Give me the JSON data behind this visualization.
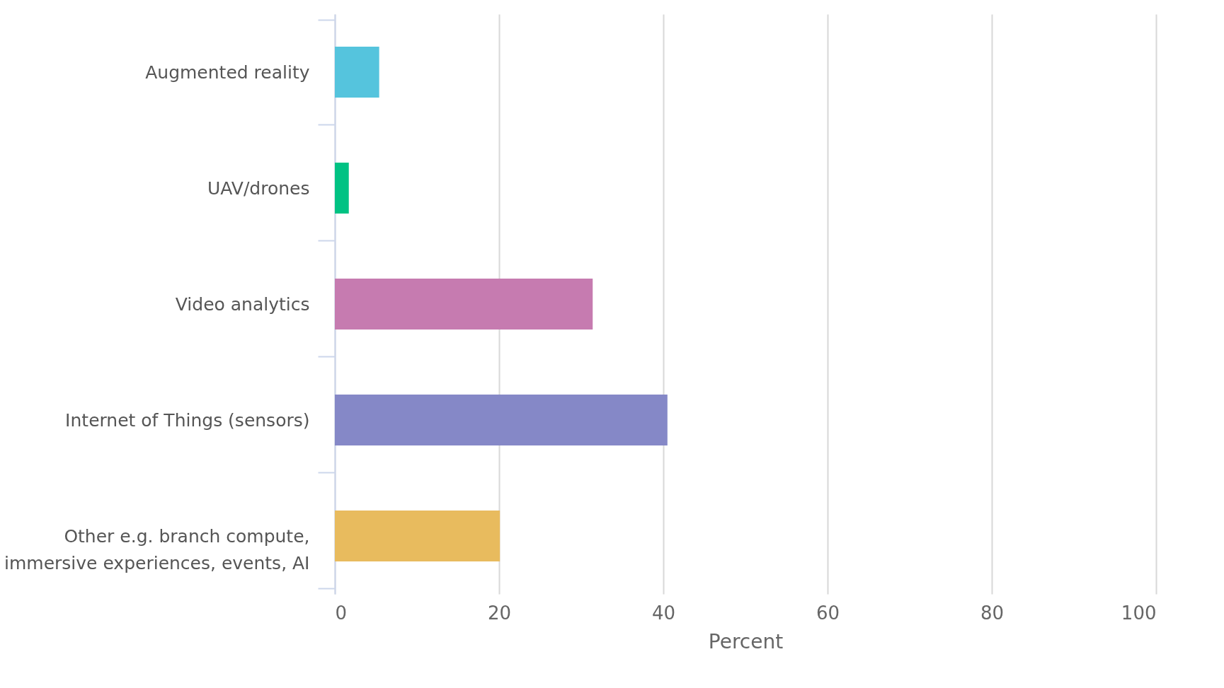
{
  "chart_data": {
    "type": "bar",
    "orientation": "horizontal",
    "xlabel": "Percent",
    "categories": [
      "Augmented reality",
      "UAV/drones",
      "Video analytics",
      "Internet of Things (sensors)",
      "Other e.g. branch compute, immersive experiences, events, AI"
    ],
    "values": [
      5.4,
      1.7,
      31.4,
      40.5,
      20.1
    ],
    "colors": [
      "#55c4dd",
      "#00c283",
      "#c67bb0",
      "#8588c7",
      "#e8bb5e"
    ],
    "xlim": [
      0,
      100
    ],
    "xticks": [
      0,
      20,
      40,
      60,
      80,
      100
    ],
    "grid": "x"
  }
}
